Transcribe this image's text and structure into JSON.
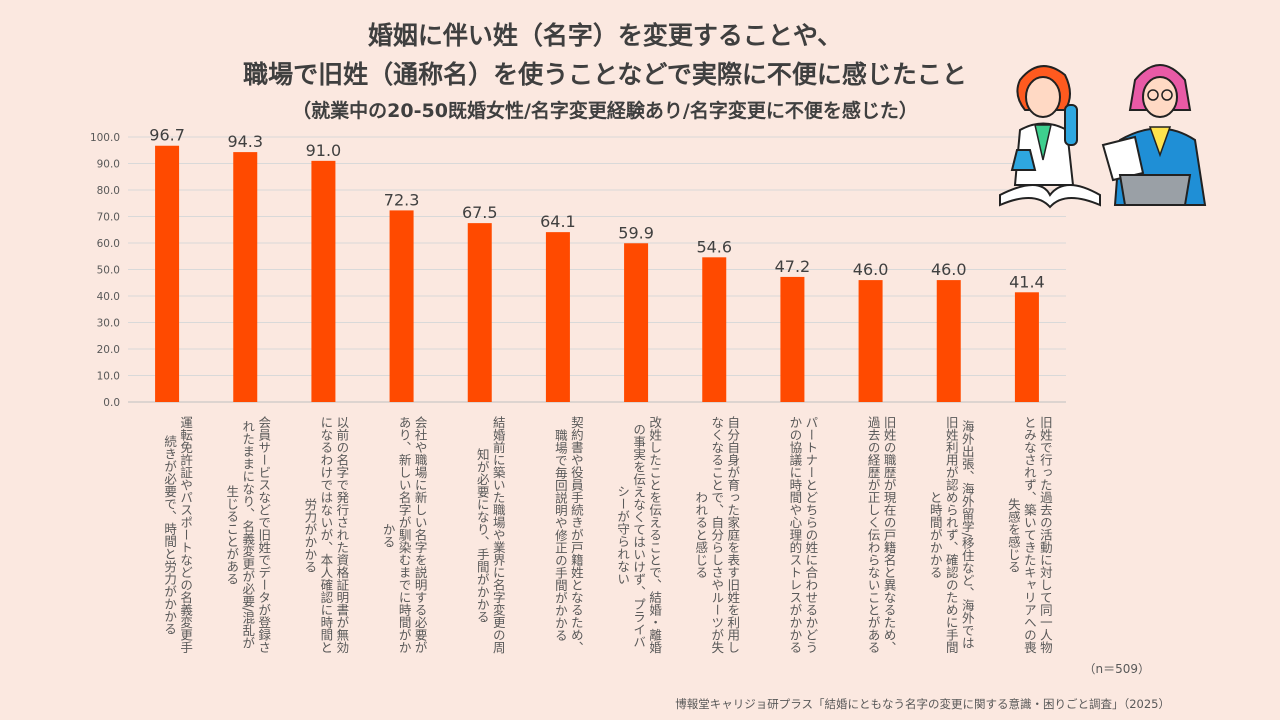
{
  "title_line1": "婚姻に伴い姓（名字）を変更することや、",
  "title_line2": "職場で旧姓（通称名）を使うことなどで実際に不便に感じたこと",
  "subtitle": "（就業中の20-50既婚女性/名字変更経験あり/名字変更に不便を感じた）",
  "sample_size": "（n＝509）",
  "source": "博報堂キャリジョ研プラス「結婚にともなう名字の変更に関する意識・困りごと調査」（2025）",
  "colors": {
    "bar": "#ff4a00",
    "background": "#fbe8e0",
    "grid": "#d9d9d9"
  },
  "chart_data": {
    "type": "bar",
    "title": "婚姻に伴い姓（名字）を変更することや、職場で旧姓（通称名）を使うことなどで実際に不便に感じたこと",
    "xlabel": "",
    "ylabel": "",
    "ylim": [
      0,
      100
    ],
    "yticks": [
      "0.0",
      "10.0",
      "20.0",
      "30.0",
      "40.0",
      "50.0",
      "60.0",
      "70.0",
      "80.0",
      "90.0",
      "100.0"
    ],
    "grid": true,
    "categories": [
      "運転免許証やパスポートなどの名義変更手\n続きが必要で、時間と労力がかかる",
      "会員サービスなどで旧姓でデータが登録さ\nれたままになり、名義変更が必要/混乱が\n生じることがある",
      "以前の名字で発行された資格証明書が無効\nになるわけではないが、本人確認に時間と\n労力がかかる",
      "会社や職場に新しい名字を説明する必要が\nあり、新しい名字が馴染むまでに時間がか\nかる",
      "結婚前に築いた職場や業界に名字変更の周\n知が必要になり、手間がかかる",
      "契約書や役員手続きが戸籍姓となるため、\n職場で毎回説明や修正の手間がかかる",
      "改姓したことを伝えることで、結婚・離婚\nの事実を伝えなくてはいけず、プライバ\nシーが守られない",
      "自分自身が育った家庭を表す旧姓を利用し\nなくなることで、自分らしさやルーツが失\nわれると感じる",
      "パートナーとどちらの姓に合わせるかどう\nかの協議に時間や心理的ストレスがかかる",
      "旧姓の職歴が現在の戸籍名と異なるため、\n過去の経歴が正しく伝わらないことがある",
      "海外出張、海外留学/移住など、海外では\n旧姓利用が認められず、確認のために手間\nと時間がかかる",
      "旧姓で行った過去の活動に対して同一人物\nとみなされず、築いてきたキャリアへの喪\n失感を感じる"
    ],
    "values": [
      96.7,
      94.3,
      91.0,
      72.3,
      67.5,
      64.1,
      59.9,
      54.6,
      47.2,
      46.0,
      46.0,
      41.4
    ],
    "value_labels": [
      "96.7",
      "94.3",
      "91.0",
      "72.3",
      "67.5",
      "64.1",
      "59.9",
      "54.6",
      "47.2",
      "46.0",
      "46.0",
      "41.4"
    ]
  }
}
